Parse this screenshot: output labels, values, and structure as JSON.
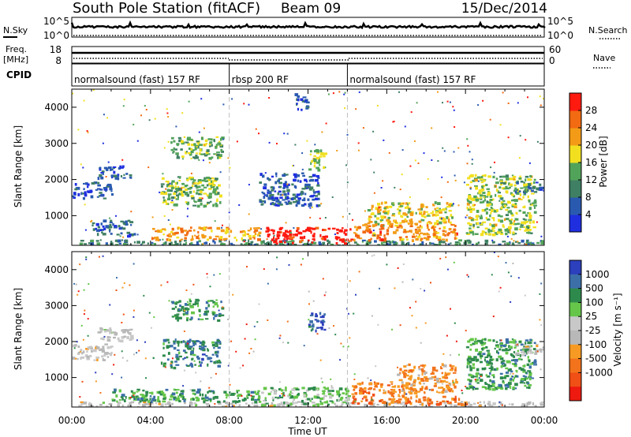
{
  "header": {
    "station": "South Pole Station (fitACF)",
    "beam": "Beam 09",
    "date": "15/Dec/2014"
  },
  "top_panels": {
    "nsky_label": "N.Sky",
    "nsky_ticks": [
      "10^5",
      "10^0"
    ],
    "nsearch_label": "N.Search",
    "nsearch_ticks": [
      "10^5",
      "10^0"
    ],
    "freq_label_top": "Freq.",
    "freq_label_unit": "[MHz]",
    "freq_ticks": [
      "18",
      "8"
    ],
    "nave_label": "Nave",
    "nave_ticks": [
      "60",
      "0"
    ],
    "cpid_label": "CPID",
    "cpid_segments": [
      {
        "label": "normalsound (fast) 157 RF",
        "start_hour": 0,
        "end_hour": 8
      },
      {
        "label": "rbsp 200 RF",
        "start_hour": 8,
        "end_hour": 14
      },
      {
        "label": "normalsound (fast) 157 RF",
        "start_hour": 14,
        "end_hour": 24
      }
    ]
  },
  "colors": {
    "power_scale": [
      "#1f2fe0",
      "#2a5ab0",
      "#3f7f63",
      "#52a35a",
      "#f2e020",
      "#f39b16",
      "#f26a12",
      "#ff1a10"
    ],
    "velocity_scale": [
      "#2c3fbd",
      "#3c6fa8",
      "#2e8a4c",
      "#66c64a",
      "#c8c8c8",
      "#b8b8b8",
      "#f79a23",
      "#f2731c",
      "#f04f16",
      "#ee1a10"
    ],
    "ground_scatter_gray": "#bdbdbd"
  },
  "chart_data": [
    {
      "type": "heatmap",
      "quantity": "Power",
      "ylabel": "Slant Range [km]",
      "xlabel": "Time UT",
      "xlim_hours": [
        0,
        24
      ],
      "ylim_km": [
        180,
        4500
      ],
      "x_tick_labels": [
        "00:00",
        "04:00",
        "08:00",
        "12:00",
        "16:00",
        "20:00",
        "00:00"
      ],
      "y_tick_values": [
        1000,
        2000,
        3000,
        4000
      ],
      "colorbar_label": "Power [dB]",
      "colorbar_ticks": [
        4,
        8,
        12,
        16,
        20,
        24,
        28
      ],
      "colorbar_range": [
        0,
        32
      ],
      "regions": [
        {
          "t0": 0.0,
          "t1": 24.0,
          "r0": 200,
          "r1": 350,
          "level": 2.0
        },
        {
          "t0": 0.0,
          "t1": 2.0,
          "r0": 1500,
          "r1": 1950,
          "level": 1.0
        },
        {
          "t0": 1.2,
          "t1": 3.0,
          "r0": 2050,
          "r1": 2400,
          "level": 1.1
        },
        {
          "t0": 1.0,
          "t1": 3.2,
          "r0": 450,
          "r1": 900,
          "level": 1.3
        },
        {
          "t0": 4.5,
          "t1": 7.5,
          "r0": 1300,
          "r1": 2100,
          "level": 3.2
        },
        {
          "t0": 5.0,
          "t1": 7.6,
          "r0": 2600,
          "r1": 3200,
          "level": 3.0
        },
        {
          "t0": 4.0,
          "t1": 9.5,
          "r0": 350,
          "r1": 700,
          "level": 5.0
        },
        {
          "t0": 9.8,
          "t1": 14.2,
          "r0": 250,
          "r1": 700,
          "level": 7.3
        },
        {
          "t0": 9.5,
          "t1": 12.5,
          "r0": 1300,
          "r1": 2200,
          "level": 1.0
        },
        {
          "t0": 12.0,
          "t1": 12.8,
          "r0": 2300,
          "r1": 2850,
          "level": 3.5
        },
        {
          "t0": 11.3,
          "t1": 11.9,
          "r0": 3900,
          "r1": 4400,
          "level": 1.0
        },
        {
          "t0": 14.3,
          "t1": 19.5,
          "r0": 350,
          "r1": 800,
          "level": 5.5
        },
        {
          "t0": 15.0,
          "t1": 19.5,
          "r0": 800,
          "r1": 1400,
          "level": 4.2
        },
        {
          "t0": 20.0,
          "t1": 23.5,
          "r0": 500,
          "r1": 2150,
          "level": 3.5
        },
        {
          "t0": 22.5,
          "t1": 24.0,
          "r0": 1650,
          "r1": 1950,
          "level": 1.0
        }
      ]
    },
    {
      "type": "heatmap",
      "quantity": "Velocity",
      "ylabel": "Slant Range [km]",
      "xlabel": "Time UT",
      "xlim_hours": [
        0,
        24
      ],
      "ylim_km": [
        180,
        4500
      ],
      "x_tick_labels": [
        "00:00",
        "04:00",
        "08:00",
        "12:00",
        "16:00",
        "20:00",
        "00:00"
      ],
      "y_tick_values": [
        1000,
        2000,
        3000,
        4000
      ],
      "colorbar_label": "Velocity [m s⁻¹]",
      "colorbar_ticks": [
        "1000",
        "500",
        "100",
        "25",
        "-25",
        "-100",
        "-500",
        "-1000"
      ],
      "regions": [
        {
          "t0": 0.0,
          "t1": 24.0,
          "r0": 200,
          "r1": 350,
          "level": 4.5
        },
        {
          "t0": 0.0,
          "t1": 2.0,
          "r0": 1500,
          "r1": 1950,
          "level": 4.6
        },
        {
          "t0": 1.2,
          "t1": 3.0,
          "r0": 2050,
          "r1": 2400,
          "level": 4.4
        },
        {
          "t0": 4.5,
          "t1": 7.5,
          "r0": 1300,
          "r1": 2100,
          "level": 1.5
        },
        {
          "t0": 5.0,
          "t1": 7.6,
          "r0": 2600,
          "r1": 3200,
          "level": 2.0
        },
        {
          "t0": 2.0,
          "t1": 9.5,
          "r0": 350,
          "r1": 700,
          "level": 2.3
        },
        {
          "t0": 9.6,
          "t1": 14.0,
          "r0": 250,
          "r1": 750,
          "level": 3.0
        },
        {
          "t0": 12.0,
          "t1": 12.8,
          "r0": 2300,
          "r1": 2850,
          "level": 0.6
        },
        {
          "t0": 14.2,
          "t1": 17.5,
          "r0": 300,
          "r1": 900,
          "level": 6.8
        },
        {
          "t0": 16.5,
          "t1": 19.5,
          "r0": 600,
          "r1": 1400,
          "level": 6.3
        },
        {
          "t0": 17.5,
          "t1": 20.0,
          "r0": 250,
          "r1": 500,
          "level": 7.3
        },
        {
          "t0": 20.0,
          "t1": 23.5,
          "r0": 700,
          "r1": 2100,
          "level": 2.2
        },
        {
          "t0": 22.5,
          "t1": 24.0,
          "r0": 1650,
          "r1": 1950,
          "level": 4.6
        }
      ]
    }
  ]
}
